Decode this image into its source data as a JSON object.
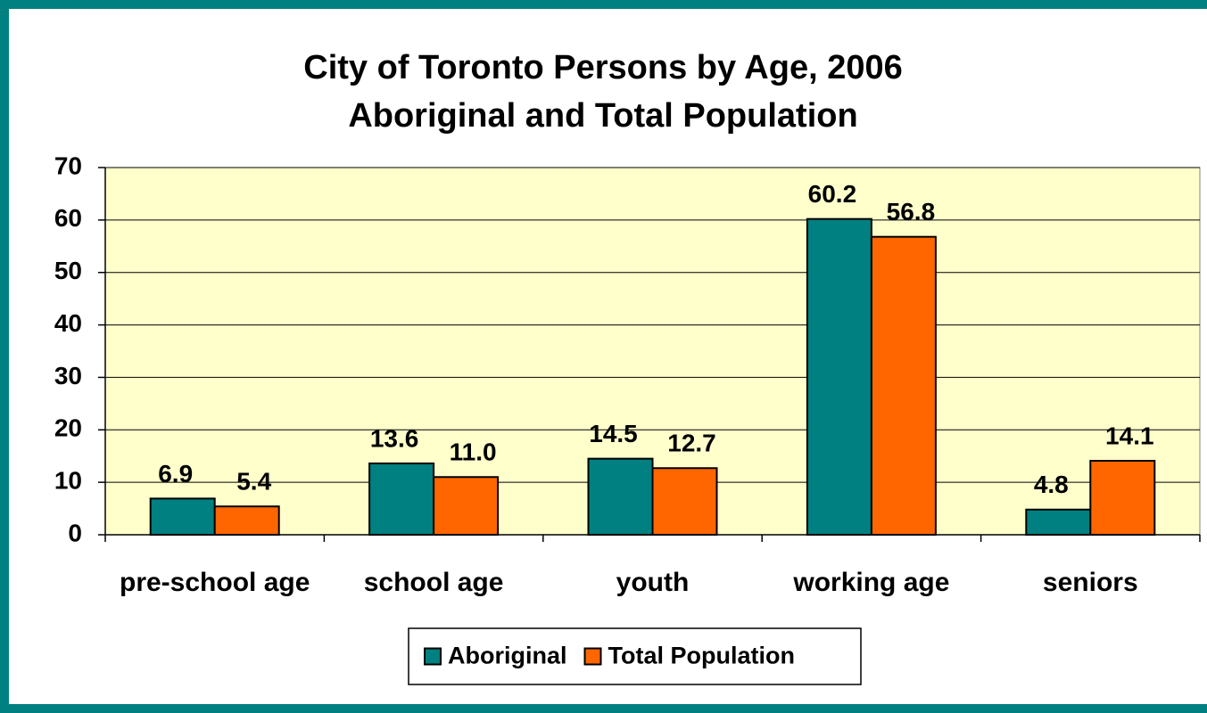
{
  "chart_data": {
    "type": "bar",
    "title": "City of Toronto Persons by Age, 2006",
    "subtitle": "Aboriginal and Total Population",
    "categories": [
      "pre-school age",
      "school age",
      "youth",
      "working age",
      "seniors"
    ],
    "series": [
      {
        "name": "Aboriginal",
        "color": "#008080",
        "values": [
          6.9,
          13.6,
          14.5,
          60.2,
          4.8
        ],
        "value_labels": [
          "6.9",
          "13.6",
          "14.5",
          "60.2",
          "4.8"
        ]
      },
      {
        "name": "Total Population",
        "color": "#ff6600",
        "values": [
          5.4,
          11.0,
          12.7,
          56.8,
          14.1
        ],
        "value_labels": [
          "5.4",
          "11.0",
          "12.7",
          "56.8",
          "14.1"
        ]
      }
    ],
    "ylim": [
      0,
      70
    ],
    "yticks": [
      0,
      10,
      20,
      30,
      40,
      50,
      60,
      70
    ],
    "grid": true,
    "plot_background": "#ffffcc",
    "legend": "bottom"
  }
}
